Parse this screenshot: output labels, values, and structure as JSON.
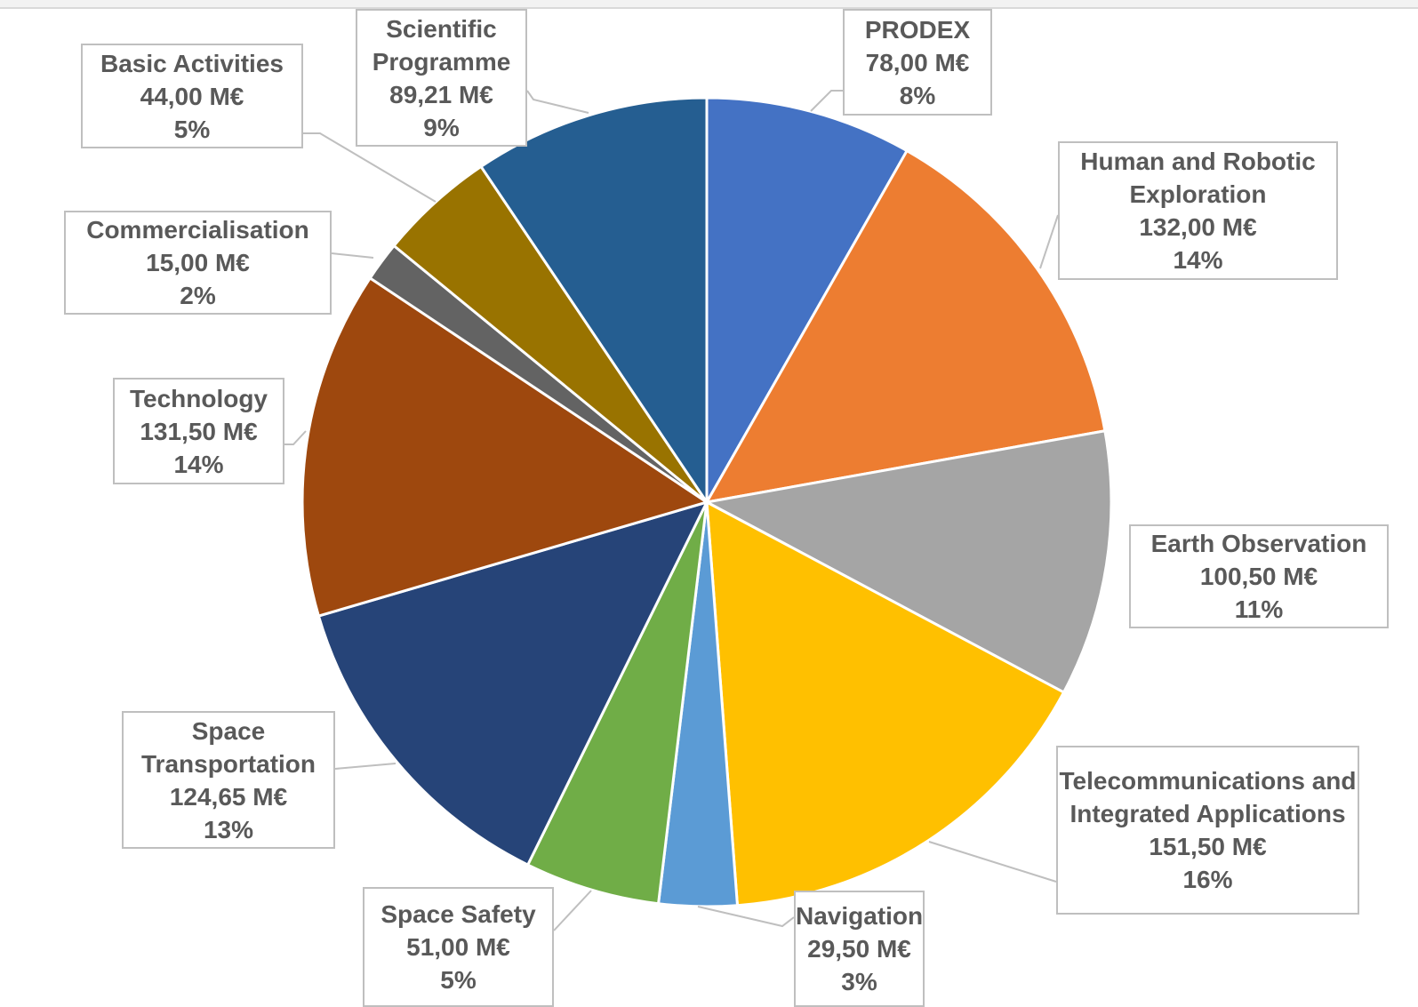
{
  "chart_data": {
    "type": "pie",
    "categories": [
      "PRODEX",
      "Human and Robotic Exploration",
      "Earth Observation",
      "Telecommunications and Integrated Applications",
      "Navigation",
      "Space Safety",
      "Space Transportation",
      "Technology",
      "Commercialisation",
      "Basic Activities",
      "Scientific Programme"
    ],
    "values": [
      78.0,
      132.0,
      100.5,
      151.5,
      29.5,
      51.0,
      124.65,
      131.5,
      15.0,
      44.0,
      89.21
    ],
    "value_labels": [
      "78,00 M€",
      "132,00 M€",
      "100,50 M€",
      "151,50 M€",
      "29,50 M€",
      "51,00 M€",
      "124,65 M€",
      "131,50 M€",
      "15,00 M€",
      "44,00 M€",
      "89,21 M€"
    ],
    "percent_labels": [
      "8%",
      "14%",
      "11%",
      "16%",
      "3%",
      "5%",
      "13%",
      "14%",
      "2%",
      "5%",
      "9%"
    ],
    "colors": [
      "#4472c4",
      "#ed7d31",
      "#a5a5a5",
      "#ffc000",
      "#5b9bd5",
      "#70ad47",
      "#264478",
      "#9e480e",
      "#636363",
      "#997300",
      "#255e91"
    ]
  }
}
